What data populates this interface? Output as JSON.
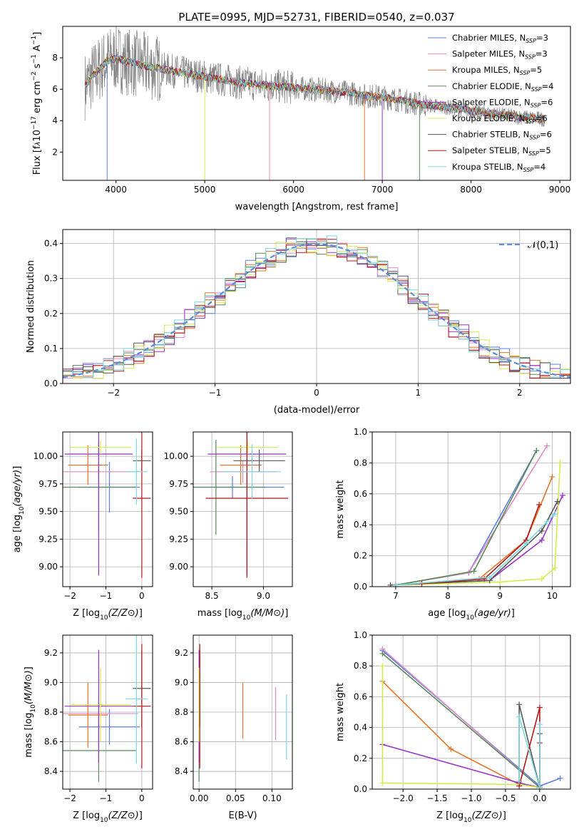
{
  "figure_title": "PLATE=0995, MJD=52731, FIBERID=0540, z=0.037",
  "chart_data": [
    {
      "id": "spectrum",
      "type": "line",
      "title": "PLATE=0995, MJD=52731, FIBERID=0540, z=0.037",
      "xlabel": "wavelength [Angstrom, rest frame]",
      "ylabel": "Flux [f",
      "ylabel_parts": [
        "Flux [f",
        "λ",
        "10",
        "−17",
        " erg cm",
        "−2",
        " s",
        "−1",
        " A",
        "−1",
        "]"
      ],
      "xlim": [
        3400,
        9120
      ],
      "ylim": [
        0.2,
        10.0
      ],
      "xticks": [
        4000,
        5000,
        6000,
        7000,
        8000,
        9000
      ],
      "yticks": [
        2,
        4,
        6,
        8
      ],
      "grid": false,
      "legend_position": "top-right",
      "series": [
        {
          "name": "Chabrier MILES",
          "label": "Chabrier MILES, N",
          "nssp": "=3",
          "color": "#5b7fe0"
        },
        {
          "name": "Salpeter MILES",
          "label": "Salpeter MILES, N",
          "nssp": "=3",
          "color": "#e08ac4"
        },
        {
          "name": "Kroupa MILES",
          "label": "Kroupa MILES, N",
          "nssp": "=5",
          "color": "#e07428"
        },
        {
          "name": "Chabrier ELODIE",
          "label": "Chabrier ELODIE, N",
          "nssp": "=4",
          "color": "#5a8a5a"
        },
        {
          "name": "Salpeter ELODIE",
          "label": "Salpeter ELODIE, N",
          "nssp": "=6",
          "color": "#9a32c8"
        },
        {
          "name": "Kroupa ELODIE",
          "label": "Kroupa ELODIE, N",
          "nssp": "=6",
          "color": "#d4ec48"
        },
        {
          "name": "Chabrier STELIB",
          "label": "Chabrier STELIB, N",
          "nssp": "=6",
          "color": "#555555"
        },
        {
          "name": "Salpeter STELIB",
          "label": "Salpeter STELIB, N",
          "nssp": "=5",
          "color": "#b81616"
        },
        {
          "name": "Kroupa STELIB",
          "label": "Kroupa STELIB, N",
          "nssp": "=4",
          "color": "#7ad8e0"
        }
      ],
      "nssp_sub": "SSP",
      "data_color": "#808080",
      "continuum": {
        "x": [
          3650,
          3700,
          3900,
          4000,
          4100,
          4300,
          4500,
          4800,
          5000,
          5300,
          5600,
          6000,
          6400,
          6600,
          6800,
          7000,
          7200,
          7500,
          7800,
          8000,
          8300,
          8600,
          8820
        ],
        "y": [
          6.2,
          6.6,
          7.8,
          8.0,
          7.8,
          7.5,
          7.3,
          7.0,
          6.8,
          6.5,
          6.3,
          6.1,
          5.9,
          5.8,
          5.6,
          5.5,
          5.3,
          5.0,
          4.8,
          4.6,
          4.4,
          4.2,
          4.1
        ]
      }
    },
    {
      "id": "residuals",
      "type": "histogram",
      "xlabel": "(data-model)/error",
      "ylabel": "Normed distribution",
      "xlim": [
        -2.5,
        2.5
      ],
      "ylim": [
        0,
        0.44
      ],
      "xticks": [
        -2,
        -1,
        0,
        1,
        2
      ],
      "yticks": [
        0.0,
        0.1,
        0.2,
        0.3,
        0.4
      ],
      "grid": true,
      "legend_position": "top-right",
      "legend": "𝒩(0,1)",
      "gaussian_color": "#5b8ad8",
      "bin_width": 0.1
    },
    {
      "id": "age_vs_Z",
      "type": "errorbar",
      "xlabel": "Z [log",
      "ylabel": "age  [log",
      "xlim": [
        -2.2,
        0.3
      ],
      "ylim": [
        8.82,
        10.22
      ],
      "xticks": [
        -2,
        -1,
        0
      ],
      "yticks": [
        9.0,
        9.25,
        9.5,
        9.75,
        10.0
      ],
      "grid": true,
      "points": [
        {
          "model": "Chabrier MILES",
          "x": -0.9,
          "xerr": 0.85,
          "y": 9.72,
          "yerr": 0.23
        },
        {
          "model": "Salpeter MILES",
          "x": -1.2,
          "xerr": 1.1,
          "y": 9.86,
          "yerr": 0.1
        },
        {
          "model": "Kroupa MILES",
          "x": -1.5,
          "xerr": 0.55,
          "y": 9.92,
          "yerr": 0.18
        },
        {
          "model": "Chabrier ELODIE",
          "x": -1.2,
          "xerr": 1.05,
          "y": 9.72,
          "yerr": 0.43
        },
        {
          "model": "Salpeter ELODIE",
          "x": -1.2,
          "xerr": 0.95,
          "y": 10.02,
          "yerr": 1.1
        },
        {
          "model": "Kroupa ELODIE",
          "x": -1.15,
          "xerr": 0.85,
          "y": 10.08,
          "yerr": 0.06
        },
        {
          "model": "Chabrier STELIB",
          "x": 0.0,
          "xerr": 0.25,
          "y": 9.96,
          "yerr": 0.1
        },
        {
          "model": "Salpeter STELIB",
          "x": 0.0,
          "xerr": 0.25,
          "y": 9.62,
          "yerr": 0.72
        },
        {
          "model": "Kroupa STELIB",
          "x": -0.15,
          "xerr": 0.3,
          "y": 9.86,
          "yerr": 0.3
        }
      ]
    },
    {
      "id": "age_vs_mass",
      "type": "errorbar",
      "xlabel": "mass [log",
      "xlim": [
        8.32,
        9.28
      ],
      "ylim": [
        8.82,
        10.22
      ],
      "xticks": [
        8.5,
        9.0
      ],
      "yticks": [
        9.0,
        9.25,
        9.5,
        9.75,
        10.0
      ],
      "grid": true,
      "points": [
        {
          "model": "Chabrier MILES",
          "x": 8.7,
          "xerr": 0.5,
          "y": 9.72,
          "yerr": 0.1
        },
        {
          "model": "Salpeter MILES",
          "x": 8.8,
          "xerr": 0.32,
          "y": 9.86,
          "yerr": 0.1
        },
        {
          "model": "Kroupa MILES",
          "x": 8.78,
          "xerr": 0.2,
          "y": 9.92,
          "yerr": 0.18
        },
        {
          "model": "Chabrier ELODIE",
          "x": 8.54,
          "xerr": 0.48,
          "y": 9.72,
          "yerr": 0.43
        },
        {
          "model": "Salpeter ELODIE",
          "x": 8.84,
          "xerr": 0.38,
          "y": 10.02,
          "yerr": 1.1
        },
        {
          "model": "Kroupa ELODIE",
          "x": 8.85,
          "xerr": 0.29,
          "y": 10.08,
          "yerr": 0.06
        },
        {
          "model": "Chabrier STELIB",
          "x": 8.96,
          "xerr": 0.25,
          "y": 9.96,
          "yerr": 0.1
        },
        {
          "model": "Salpeter STELIB",
          "x": 8.84,
          "xerr": 0.4,
          "y": 9.62,
          "yerr": 0.72
        },
        {
          "model": "Kroupa STELIB",
          "x": 8.89,
          "xerr": 0.28,
          "y": 9.86,
          "yerr": 0.25
        }
      ]
    },
    {
      "id": "weight_vs_age",
      "type": "line",
      "xlabel": "age  [log",
      "ylabel": "mass weight",
      "xlim": [
        6.55,
        10.35
      ],
      "ylim": [
        0,
        1.0
      ],
      "xticks": [
        7,
        8,
        9,
        10
      ],
      "yticks": [
        0.0,
        0.2,
        0.4,
        0.6,
        0.8,
        1.0
      ],
      "grid": true,
      "series": [
        {
          "model": "Chabrier MILES",
          "x": [
            7.0,
            8.4,
            9.7
          ],
          "y": [
            0.01,
            0.09,
            0.88
          ]
        },
        {
          "model": "Salpeter MILES",
          "x": [
            7.0,
            8.4,
            9.9
          ],
          "y": [
            0.01,
            0.09,
            0.91
          ]
        },
        {
          "model": "Kroupa MILES",
          "x": [
            7.0,
            8.6,
            9.5,
            10.0
          ],
          "y": [
            0.01,
            0.05,
            0.3,
            0.71
          ]
        },
        {
          "model": "Chabrier ELODIE",
          "x": [
            7.0,
            8.5,
            9.7
          ],
          "y": [
            0.01,
            0.1,
            0.88
          ]
        },
        {
          "model": "Salpeter ELODIE",
          "x": [
            7.0,
            8.8,
            9.8,
            10.2
          ],
          "y": [
            0.01,
            0.04,
            0.3,
            0.59
          ]
        },
        {
          "model": "Kroupa ELODIE",
          "x": [
            7.0,
            9.0,
            9.8,
            10.05,
            10.15,
            10.05
          ],
          "y": [
            0.01,
            0.03,
            0.05,
            0.12,
            0.8,
            0.12
          ]
        },
        {
          "model": "Chabrier STELIB",
          "x": [
            6.9,
            8.8,
            9.8,
            10.1
          ],
          "y": [
            0.01,
            0.04,
            0.36,
            0.55
          ]
        },
        {
          "model": "Salpeter STELIB",
          "x": [
            7.5,
            8.7,
            9.5,
            9.75
          ],
          "y": [
            0.02,
            0.05,
            0.3,
            0.53
          ]
        },
        {
          "model": "Kroupa STELIB",
          "x": [
            7.0,
            8.8,
            9.5,
            9.9,
            10.05
          ],
          "y": [
            0.01,
            0.06,
            0.28,
            0.42,
            0.47
          ]
        }
      ]
    },
    {
      "id": "mass_vs_Z",
      "type": "errorbar",
      "xlabel": "Z [log",
      "ylabel": "mass [log",
      "xlim": [
        -2.2,
        0.3
      ],
      "ylim": [
        8.28,
        9.32
      ],
      "xticks": [
        -2,
        -1,
        0
      ],
      "yticks": [
        8.4,
        8.6,
        8.8,
        9.0,
        9.2
      ],
      "grid": true,
      "points": [
        {
          "model": "Chabrier MILES",
          "x": -0.9,
          "xerr": 0.85,
          "y": 8.7,
          "yerr": 0.12
        },
        {
          "model": "Salpeter MILES",
          "x": -1.2,
          "xerr": 1.1,
          "y": 8.79,
          "yerr": 0.1
        },
        {
          "model": "Kroupa MILES",
          "x": -1.5,
          "xerr": 0.55,
          "y": 8.78,
          "yerr": 0.22
        },
        {
          "model": "Chabrier ELODIE",
          "x": -1.2,
          "xerr": 1.05,
          "y": 8.54,
          "yerr": 0.21
        },
        {
          "model": "Salpeter ELODIE",
          "x": -1.2,
          "xerr": 0.95,
          "y": 8.84,
          "yerr": 0.38
        },
        {
          "model": "Kroupa ELODIE",
          "x": -1.15,
          "xerr": 0.85,
          "y": 8.85,
          "yerr": 0.25
        },
        {
          "model": "Chabrier STELIB",
          "x": 0.0,
          "xerr": 0.25,
          "y": 8.96,
          "yerr": 0.26
        },
        {
          "model": "Salpeter STELIB",
          "x": 0.0,
          "xerr": 0.25,
          "y": 8.84,
          "yerr": 0.42
        },
        {
          "model": "Kroupa STELIB",
          "x": -0.15,
          "xerr": 0.3,
          "y": 8.89,
          "yerr": 0.44
        }
      ]
    },
    {
      "id": "mass_vs_ebv",
      "type": "errorbar",
      "xlabel": "E(B-V)",
      "xlim": [
        -0.008,
        0.128
      ],
      "ylim": [
        8.28,
        9.32
      ],
      "xticks": [
        0.0,
        0.05,
        0.1
      ],
      "yticks": [
        8.4,
        8.6,
        8.8,
        9.0,
        9.2
      ],
      "grid": true,
      "points": [
        {
          "model": "Chabrier MILES",
          "x": 0.0,
          "y": 8.7,
          "yerr": 0.12
        },
        {
          "model": "Salpeter MILES",
          "x": 0.105,
          "y": 8.79,
          "yerr": 0.18
        },
        {
          "model": "Kroupa MILES",
          "x": 0.06,
          "y": 8.81,
          "yerr": 0.19
        },
        {
          "model": "Chabrier ELODIE",
          "x": 0.0,
          "y": 8.54,
          "yerr": 0.21
        },
        {
          "model": "Salpeter ELODIE",
          "x": 0.0,
          "y": 8.84,
          "yerr": 0.38
        },
        {
          "model": "Kroupa ELODIE",
          "x": 0.0,
          "y": 8.85,
          "yerr": 0.25
        },
        {
          "model": "Chabrier STELIB",
          "x": 0.001,
          "y": 8.96,
          "yerr": 0.26
        },
        {
          "model": "Salpeter STELIB",
          "x": 0.001,
          "y": 8.84,
          "yerr": 0.42
        },
        {
          "model": "Kroupa STELIB",
          "x": 0.12,
          "y": 8.7,
          "yerr": 0.22
        }
      ]
    },
    {
      "id": "weight_vs_Z",
      "type": "line",
      "xlabel": "Z [log",
      "ylabel": "mass weight",
      "xlim": [
        -2.45,
        0.45
      ],
      "ylim": [
        0,
        1.0
      ],
      "xticks": [
        -2.0,
        -1.5,
        -1.0,
        -0.5,
        0.0
      ],
      "yticks": [
        0.0,
        0.2,
        0.4,
        0.6,
        0.8,
        1.0
      ],
      "grid": true,
      "series": [
        {
          "model": "Chabrier MILES",
          "x": [
            -2.3,
            0.0,
            0.3
          ],
          "y": [
            0.9,
            0.02,
            0.07
          ]
        },
        {
          "model": "Salpeter MILES",
          "x": [
            -2.3,
            0.0
          ],
          "y": [
            0.91,
            0.01
          ]
        },
        {
          "model": "Kroupa MILES",
          "x": [
            -2.3,
            -1.3,
            -0.3,
            0.0
          ],
          "y": [
            0.7,
            0.26,
            0.03,
            0.01
          ]
        },
        {
          "model": "Chabrier ELODIE",
          "x": [
            -2.3,
            0.0
          ],
          "y": [
            0.88,
            0.01
          ]
        },
        {
          "model": "Salpeter ELODIE",
          "x": [
            -2.3,
            -0.3,
            0.0
          ],
          "y": [
            0.29,
            0.04,
            0.01
          ]
        },
        {
          "model": "Kroupa ELODIE",
          "x": [
            -2.3,
            -2.3,
            -0.3,
            0.0
          ],
          "y": [
            0.8,
            0.04,
            0.03,
            0.01
          ]
        },
        {
          "model": "Chabrier STELIB",
          "x": [
            -0.3,
            -0.3,
            0.0,
            0.0
          ],
          "y": [
            0.05,
            0.55,
            0.01,
            0.36
          ]
        },
        {
          "model": "Salpeter STELIB",
          "x": [
            -0.3,
            0.0,
            0.0,
            0.0
          ],
          "y": [
            0.02,
            0.53,
            0.01,
            0.3
          ]
        },
        {
          "model": "Kroupa STELIB",
          "x": [
            -0.3,
            -0.3,
            0.0,
            0.0
          ],
          "y": [
            0.05,
            0.47,
            0.01,
            0.42
          ]
        }
      ]
    }
  ]
}
